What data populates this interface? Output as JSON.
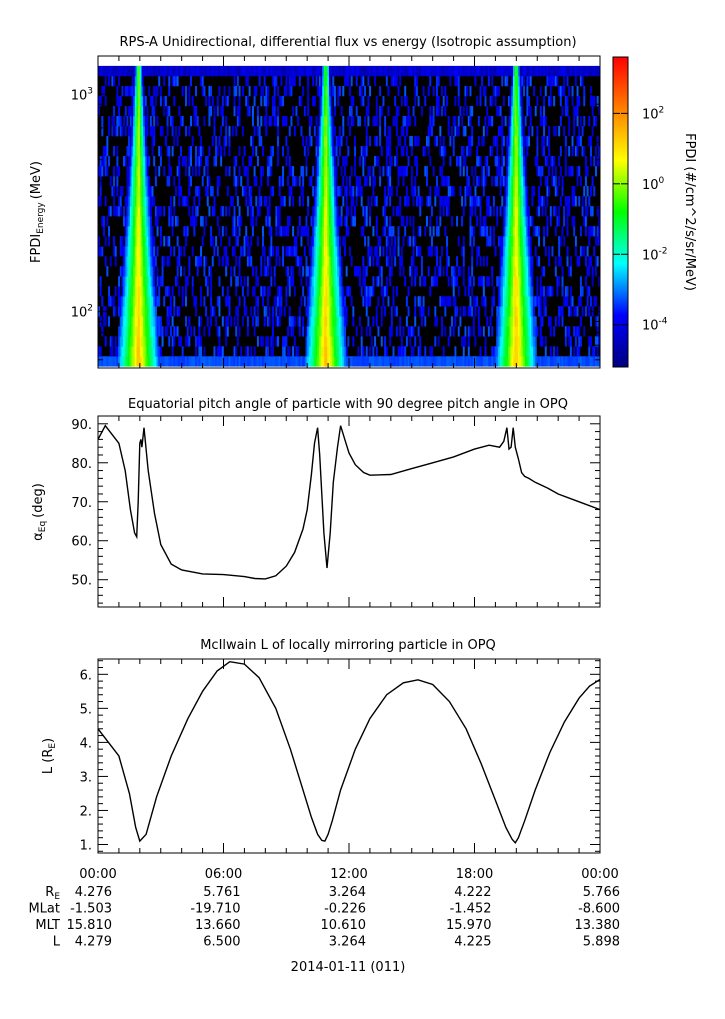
{
  "chart_data": [
    {
      "type": "heatmap",
      "title": "RPS-A Unidirectional, differential flux vs energy (Isotropic assumption)",
      "ylabel": "FPDI",
      "ylabel_sub": "Energy",
      "ylabel_unit": "(MeV)",
      "yscale": "log",
      "ylim": [
        55,
        1500
      ],
      "y_ticks": [
        {
          "v": 100,
          "base": "10",
          "exp": "2"
        },
        {
          "v": 1000,
          "base": "10",
          "exp": "3"
        }
      ],
      "x": {
        "start_hours": 0,
        "end_hours": 24
      },
      "energy_range": [
        56,
        1350
      ],
      "flux_bands": [
        {
          "center_hours": 1.9
        },
        {
          "center_hours": 10.85
        },
        {
          "center_hours": 19.95
        }
      ],
      "colorbar": {
        "label": "FPDI (#/cm^2/s/sr/MeV)",
        "scale": "log",
        "range_exp": [
          -5.2,
          3.6
        ],
        "ticks": [
          {
            "base": "10",
            "exp": "2",
            "e": 2
          },
          {
            "base": "10",
            "exp": "0",
            "e": 0
          },
          {
            "base": "10",
            "exp": "-2",
            "e": -2
          },
          {
            "base": "10",
            "exp": "-4",
            "e": -4
          }
        ],
        "colors": [
          "#00007f",
          "#0000ff",
          "#00ffff",
          "#00ff00",
          "#ffff00",
          "#ff7f00",
          "#ff0000"
        ]
      },
      "fill_color": "#000000"
    },
    {
      "type": "line",
      "title": "Equatorial pitch angle of particle with 90 degree pitch angle in OPQ",
      "ylabel": "α",
      "ylabel_sub": "Eq",
      "ylabel_unit": "(deg)",
      "ylim": [
        43,
        92
      ],
      "y_ticks": [
        50,
        60,
        70,
        80,
        90
      ],
      "y_tick_labels": [
        "50.",
        "60.",
        "70.",
        "80.",
        "90."
      ],
      "x": [
        0,
        0.35,
        1.0,
        1.3,
        1.55,
        1.75,
        1.85,
        1.92,
        2.0,
        2.05,
        2.1,
        2.2,
        2.4,
        2.7,
        3.0,
        3.5,
        4.0,
        5.0,
        6.0,
        7.0,
        7.5,
        8.0,
        8.5,
        9.0,
        9.4,
        9.8,
        10.0,
        10.2,
        10.35,
        10.5,
        10.6,
        10.8,
        10.95,
        11.1,
        11.25,
        11.45,
        11.6,
        11.8,
        12.0,
        12.3,
        12.7,
        13.0,
        14.0,
        15.0,
        16.0,
        17.0,
        18.0,
        18.7,
        19.2,
        19.4,
        19.55,
        19.65,
        19.75,
        19.85,
        19.95,
        20.1,
        20.25,
        20.4,
        20.6,
        20.9,
        21.5,
        22.0,
        23.0,
        24.0
      ],
      "y": [
        86,
        89.5,
        85,
        78,
        68,
        62,
        61,
        70,
        85,
        86,
        84,
        89,
        78,
        67,
        59,
        54,
        52.5,
        51.5,
        51.3,
        50.8,
        50.3,
        50.2,
        51,
        53.5,
        57,
        63,
        68,
        77,
        85,
        89,
        82,
        62,
        53,
        62,
        75,
        84,
        89.5,
        86,
        82.5,
        79.5,
        77.5,
        76.8,
        77,
        78.5,
        80,
        81.5,
        83.5,
        84.5,
        84,
        85.5,
        89,
        83.5,
        84,
        89,
        84,
        81,
        77.5,
        76.5,
        76,
        75,
        73.5,
        72,
        70,
        68
      ]
    },
    {
      "type": "line",
      "title": "McIlwain L of locally mirroring particle in OPQ",
      "ylabel": "L (R",
      "ylabel_sub": "E",
      "ylabel_unit": ")",
      "ylim": [
        0.75,
        6.45
      ],
      "y_ticks": [
        1,
        2,
        3,
        4,
        5,
        6
      ],
      "y_tick_labels": [
        "1.",
        "2.",
        "3.",
        "4.",
        "5.",
        "6."
      ],
      "x": [
        0,
        1.0,
        1.5,
        1.8,
        2.0,
        2.3,
        2.8,
        3.5,
        4.3,
        5.0,
        5.7,
        6.3,
        7.0,
        7.7,
        8.5,
        9.2,
        9.7,
        10.2,
        10.5,
        10.7,
        10.85,
        11.0,
        11.2,
        11.6,
        12.3,
        13.0,
        13.8,
        14.6,
        15.3,
        16.0,
        16.8,
        17.6,
        18.3,
        19.0,
        19.5,
        19.8,
        19.95,
        20.1,
        20.4,
        20.9,
        21.6,
        22.3,
        23.0,
        23.5,
        24.0
      ],
      "y": [
        4.4,
        3.6,
        2.5,
        1.5,
        1.1,
        1.3,
        2.4,
        3.6,
        4.7,
        5.5,
        6.1,
        6.37,
        6.3,
        5.9,
        5.0,
        3.8,
        2.8,
        1.8,
        1.3,
        1.12,
        1.1,
        1.3,
        1.7,
        2.6,
        3.8,
        4.7,
        5.4,
        5.75,
        5.84,
        5.7,
        5.2,
        4.4,
        3.4,
        2.3,
        1.5,
        1.15,
        1.05,
        1.2,
        1.7,
        2.6,
        3.7,
        4.6,
        5.3,
        5.65,
        5.85
      ]
    }
  ],
  "time_axis": {
    "tick_labels": [
      "00:00",
      "06:00",
      "12:00",
      "18:00",
      "00:00"
    ],
    "major_hours": [
      0,
      6,
      12,
      18,
      24
    ],
    "minor_step_hours": 1,
    "ephemeris": [
      {
        "label": "R",
        "label_sub": "E",
        "values": [
          "4.276",
          "5.761",
          "3.264",
          "4.222",
          "5.766"
        ]
      },
      {
        "label": "MLat",
        "label_sub": "",
        "values": [
          "-1.503",
          "-19.710",
          "-0.226",
          "-1.452",
          "-8.600"
        ]
      },
      {
        "label": "MLT",
        "label_sub": "",
        "values": [
          "15.810",
          "13.660",
          "10.610",
          "15.970",
          "13.380"
        ]
      },
      {
        "label": "L",
        "label_sub": "",
        "values": [
          "4.279",
          "6.500",
          "3.264",
          "4.225",
          "5.898"
        ]
      }
    ],
    "date_label": "2014-01-11 (011)"
  }
}
